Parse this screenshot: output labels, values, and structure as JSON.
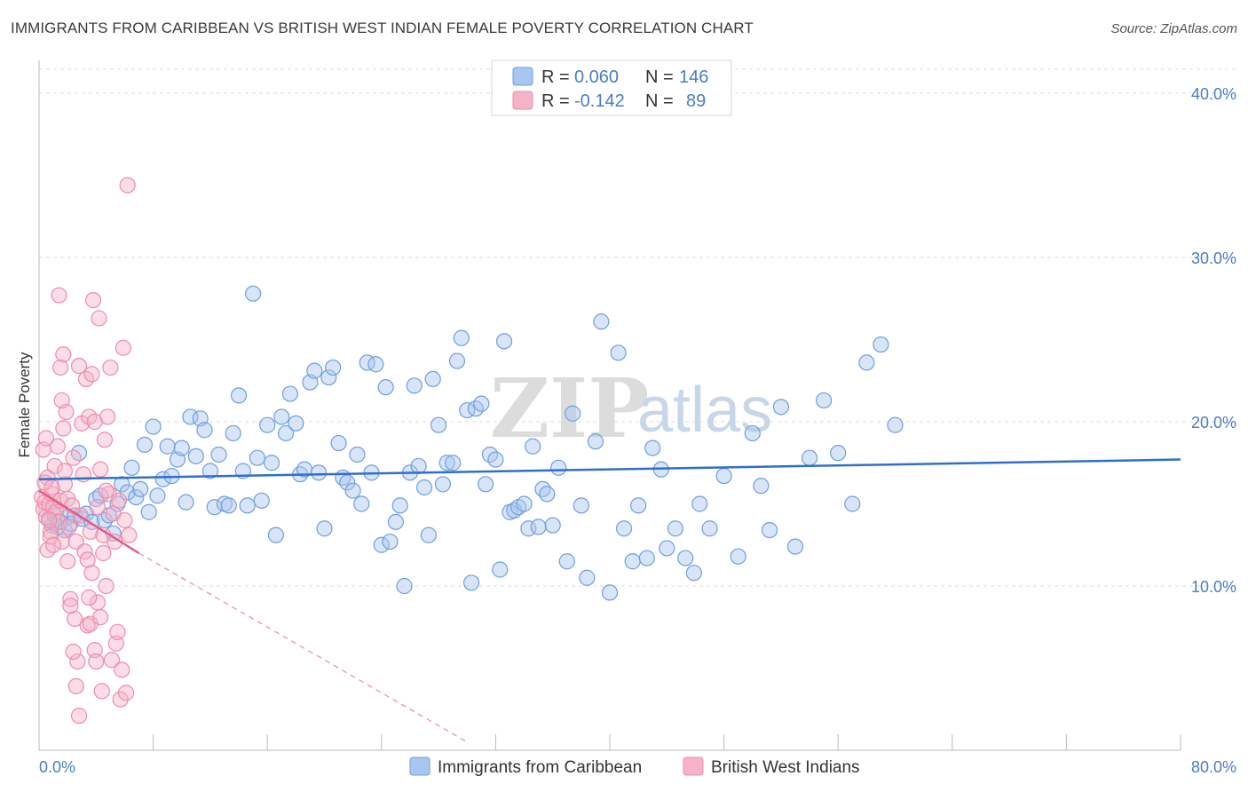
{
  "title": "IMMIGRANTS FROM CARIBBEAN VS BRITISH WEST INDIAN FEMALE POVERTY CORRELATION CHART",
  "source": "Source: ZipAtlas.com",
  "watermark": {
    "zip": "ZIP",
    "atlas": "atlas"
  },
  "colors": {
    "blue_fill": "#a9c6ee",
    "blue_stroke": "#6f9ee0",
    "blue_line": "#2f6fcc",
    "pink_fill": "#f5b3c8",
    "pink_stroke": "#ee8cab",
    "pink_line": "#e05a85",
    "axis_text": "#4a7cc7",
    "grid": "#dddddd"
  },
  "legend": {
    "rows": [
      {
        "r_label": "R =",
        "r_value": "0.060",
        "n_label": "N =",
        "n_value": "146"
      },
      {
        "r_label": "R =",
        "r_value": "-0.142",
        "n_label": "N =",
        "n_value": "89"
      }
    ]
  },
  "chart_data": {
    "type": "scatter",
    "title": "IMMIGRANTS FROM CARIBBEAN VS BRITISH WEST INDIAN FEMALE POVERTY CORRELATION CHART",
    "xlabel": "",
    "ylabel": "Female Poverty",
    "xlim": [
      0,
      80
    ],
    "ylim": [
      0,
      42
    ],
    "x_tick_labels": [
      "0.0%",
      "80.0%"
    ],
    "y_ticks": [
      10,
      20,
      30,
      40
    ],
    "y_tick_labels": [
      "10.0%",
      "20.0%",
      "30.0%",
      "40.0%"
    ],
    "series": [
      {
        "name": "Immigrants from Caribbean",
        "color": "blue",
        "r": 0.06,
        "n": 146,
        "trend": {
          "x": [
            0,
            80
          ],
          "y": [
            16.5,
            17.7
          ]
        },
        "points": [
          [
            0.7,
            14.1
          ],
          [
            0.9,
            13.7
          ],
          [
            1.1,
            14.3
          ],
          [
            1.3,
            13.6
          ],
          [
            1.5,
            13.9
          ],
          [
            1.8,
            13.4
          ],
          [
            2.0,
            14.2
          ],
          [
            2.2,
            13.8
          ],
          [
            2.5,
            14.3
          ],
          [
            2.8,
            18.1
          ],
          [
            3.0,
            14.1
          ],
          [
            3.3,
            14.4
          ],
          [
            3.7,
            13.9
          ],
          [
            4.0,
            15.3
          ],
          [
            4.3,
            15.5
          ],
          [
            4.6,
            14.0
          ],
          [
            4.9,
            14.3
          ],
          [
            5.2,
            13.2
          ],
          [
            5.5,
            15.0
          ],
          [
            5.8,
            16.2
          ],
          [
            6.2,
            15.7
          ],
          [
            6.5,
            17.2
          ],
          [
            6.8,
            15.4
          ],
          [
            7.1,
            15.9
          ],
          [
            7.4,
            18.6
          ],
          [
            7.7,
            14.5
          ],
          [
            8.0,
            19.7
          ],
          [
            8.3,
            15.5
          ],
          [
            8.7,
            16.5
          ],
          [
            9.0,
            18.5
          ],
          [
            9.3,
            16.7
          ],
          [
            9.7,
            17.7
          ],
          [
            10.0,
            18.4
          ],
          [
            10.3,
            15.1
          ],
          [
            10.6,
            20.3
          ],
          [
            11.0,
            17.9
          ],
          [
            11.3,
            20.2
          ],
          [
            11.6,
            19.5
          ],
          [
            12.0,
            17.0
          ],
          [
            12.3,
            14.8
          ],
          [
            12.6,
            18.0
          ],
          [
            13.0,
            15.0
          ],
          [
            13.3,
            14.9
          ],
          [
            13.6,
            19.3
          ],
          [
            14.0,
            21.6
          ],
          [
            14.3,
            17.0
          ],
          [
            14.6,
            14.9
          ],
          [
            15.0,
            27.8
          ],
          [
            15.3,
            17.8
          ],
          [
            15.6,
            15.2
          ],
          [
            16.0,
            19.8
          ],
          [
            16.3,
            17.5
          ],
          [
            16.6,
            13.1
          ],
          [
            17.0,
            20.3
          ],
          [
            17.3,
            19.3
          ],
          [
            17.6,
            21.7
          ],
          [
            18.0,
            19.9
          ],
          [
            18.3,
            16.8
          ],
          [
            18.6,
            17.1
          ],
          [
            19.0,
            22.4
          ],
          [
            19.3,
            23.1
          ],
          [
            19.6,
            16.9
          ],
          [
            20.0,
            13.5
          ],
          [
            20.3,
            22.7
          ],
          [
            20.6,
            23.3
          ],
          [
            21.0,
            18.7
          ],
          [
            21.3,
            16.6
          ],
          [
            21.6,
            16.3
          ],
          [
            22.0,
            15.8
          ],
          [
            22.3,
            18.0
          ],
          [
            22.6,
            15.0
          ],
          [
            23.0,
            23.6
          ],
          [
            23.3,
            16.9
          ],
          [
            23.6,
            23.5
          ],
          [
            24.0,
            12.5
          ],
          [
            24.3,
            22.1
          ],
          [
            24.6,
            12.7
          ],
          [
            25.0,
            13.9
          ],
          [
            25.3,
            14.9
          ],
          [
            25.6,
            10.0
          ],
          [
            26.0,
            16.9
          ],
          [
            26.3,
            22.2
          ],
          [
            26.6,
            17.3
          ],
          [
            27.0,
            16.0
          ],
          [
            27.3,
            13.1
          ],
          [
            27.6,
            22.6
          ],
          [
            28.0,
            19.8
          ],
          [
            28.3,
            16.2
          ],
          [
            28.6,
            17.5
          ],
          [
            29.0,
            17.5
          ],
          [
            29.3,
            23.7
          ],
          [
            29.6,
            25.1
          ],
          [
            30.0,
            20.7
          ],
          [
            30.3,
            10.2
          ],
          [
            30.6,
            20.8
          ],
          [
            31.0,
            21.1
          ],
          [
            31.3,
            16.2
          ],
          [
            31.6,
            18.0
          ],
          [
            32.0,
            17.7
          ],
          [
            32.3,
            11.0
          ],
          [
            32.6,
            24.9
          ],
          [
            33.0,
            14.5
          ],
          [
            33.3,
            14.6
          ],
          [
            33.6,
            14.8
          ],
          [
            34.0,
            15.0
          ],
          [
            34.3,
            13.5
          ],
          [
            34.6,
            18.5
          ],
          [
            35.0,
            13.6
          ],
          [
            35.3,
            15.9
          ],
          [
            35.6,
            15.6
          ],
          [
            36.0,
            13.7
          ],
          [
            36.4,
            17.2
          ],
          [
            37.0,
            11.5
          ],
          [
            37.4,
            20.5
          ],
          [
            38.0,
            14.9
          ],
          [
            38.4,
            10.5
          ],
          [
            39.0,
            18.8
          ],
          [
            39.4,
            26.1
          ],
          [
            40.0,
            9.6
          ],
          [
            40.6,
            24.2
          ],
          [
            41.0,
            13.5
          ],
          [
            41.6,
            11.5
          ],
          [
            42.0,
            14.9
          ],
          [
            42.6,
            11.7
          ],
          [
            43.0,
            18.4
          ],
          [
            43.6,
            17.1
          ],
          [
            44.0,
            12.3
          ],
          [
            44.6,
            13.5
          ],
          [
            45.3,
            11.7
          ],
          [
            45.9,
            10.8
          ],
          [
            46.3,
            15.0
          ],
          [
            47.0,
            13.5
          ],
          [
            48.0,
            16.7
          ],
          [
            49.0,
            11.8
          ],
          [
            50.0,
            19.3
          ],
          [
            50.6,
            16.1
          ],
          [
            51.2,
            13.4
          ],
          [
            52.0,
            20.9
          ],
          [
            53.0,
            12.4
          ],
          [
            54.0,
            17.8
          ],
          [
            55.0,
            21.3
          ],
          [
            56.0,
            18.1
          ],
          [
            57.0,
            15.0
          ],
          [
            58.0,
            23.6
          ],
          [
            59.0,
            24.7
          ],
          [
            60.0,
            19.8
          ]
        ]
      },
      {
        "name": "British West Indians",
        "color": "pink",
        "r": -0.142,
        "n": 89,
        "trend": {
          "x": [
            0,
            7
          ],
          "y": [
            15.8,
            12.0
          ],
          "dashed_to": {
            "x": 30,
            "y": 0.5
          }
        },
        "points": [
          [
            0.2,
            15.4
          ],
          [
            0.3,
            14.7
          ],
          [
            0.4,
            15.1
          ],
          [
            0.5,
            14.2
          ],
          [
            0.6,
            16.6
          ],
          [
            0.7,
            15.0
          ],
          [
            0.8,
            13.3
          ],
          [
            0.9,
            15.6
          ],
          [
            1.0,
            14.8
          ],
          [
            1.1,
            17.3
          ],
          [
            1.2,
            14.5
          ],
          [
            1.3,
            18.5
          ],
          [
            1.4,
            13.9
          ],
          [
            1.5,
            15.2
          ],
          [
            1.6,
            12.7
          ],
          [
            1.7,
            24.1
          ],
          [
            1.8,
            16.2
          ],
          [
            1.9,
            20.6
          ],
          [
            2.0,
            15.3
          ],
          [
            2.1,
            13.6
          ],
          [
            2.2,
            9.2
          ],
          [
            2.3,
            14.9
          ],
          [
            2.4,
            17.8
          ],
          [
            2.5,
            8.0
          ],
          [
            2.6,
            12.7
          ],
          [
            2.7,
            5.4
          ],
          [
            2.8,
            23.4
          ],
          [
            2.9,
            14.3
          ],
          [
            3.0,
            19.9
          ],
          [
            3.1,
            16.8
          ],
          [
            3.2,
            12.1
          ],
          [
            3.3,
            22.6
          ],
          [
            3.4,
            7.6
          ],
          [
            3.5,
            20.3
          ],
          [
            3.6,
            13.3
          ],
          [
            3.7,
            10.8
          ],
          [
            3.8,
            27.4
          ],
          [
            3.9,
            6.1
          ],
          [
            4.0,
            5.4
          ],
          [
            4.1,
            9.0
          ],
          [
            4.2,
            26.3
          ],
          [
            4.3,
            17.1
          ],
          [
            4.4,
            3.6
          ],
          [
            4.5,
            13.1
          ],
          [
            4.6,
            18.9
          ],
          [
            4.7,
            10.0
          ],
          [
            4.8,
            20.3
          ],
          [
            4.9,
            15.6
          ],
          [
            5.0,
            23.3
          ],
          [
            5.1,
            5.5
          ],
          [
            5.2,
            14.4
          ],
          [
            5.3,
            12.7
          ],
          [
            5.4,
            6.5
          ],
          [
            5.5,
            7.2
          ],
          [
            5.6,
            15.2
          ],
          [
            5.7,
            3.1
          ],
          [
            5.8,
            4.9
          ],
          [
            5.9,
            24.5
          ],
          [
            6.0,
            14.0
          ],
          [
            6.1,
            3.5
          ],
          [
            6.2,
            34.4
          ],
          [
            6.3,
            13.1
          ],
          [
            1.4,
            27.7
          ],
          [
            1.5,
            23.3
          ],
          [
            1.6,
            21.3
          ],
          [
            1.7,
            19.6
          ],
          [
            1.8,
            17.0
          ],
          [
            2.0,
            11.5
          ],
          [
            2.2,
            8.8
          ],
          [
            2.4,
            6.0
          ],
          [
            2.6,
            3.9
          ],
          [
            2.8,
            2.1
          ],
          [
            0.3,
            18.3
          ],
          [
            0.4,
            16.3
          ],
          [
            0.5,
            19.0
          ],
          [
            0.6,
            12.2
          ],
          [
            0.7,
            14.0
          ],
          [
            0.8,
            13.0
          ],
          [
            0.9,
            16.0
          ],
          [
            1.0,
            12.5
          ],
          [
            3.4,
            11.6
          ],
          [
            3.5,
            9.3
          ],
          [
            3.6,
            7.7
          ],
          [
            3.7,
            22.9
          ],
          [
            3.9,
            20.0
          ],
          [
            4.1,
            14.8
          ],
          [
            4.3,
            8.1
          ],
          [
            4.5,
            12.0
          ],
          [
            4.7,
            15.8
          ]
        ]
      }
    ],
    "legend_entries": [
      "Immigrants from Caribbean",
      "British West Indians"
    ]
  }
}
